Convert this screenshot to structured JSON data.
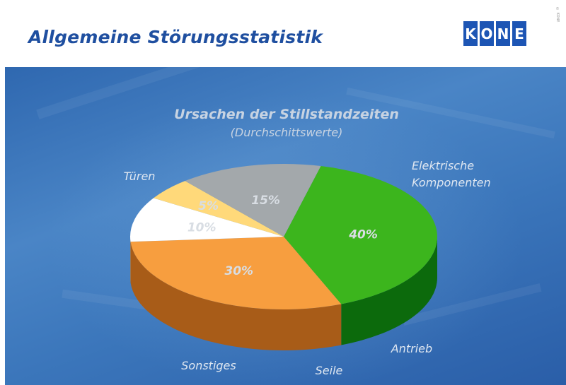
{
  "header": {
    "title": "Allgemeine Störungsstatistik",
    "logo_letters": [
      "K",
      "O",
      "N",
      "E"
    ],
    "copyright": "© KONE"
  },
  "chart_data": {
    "type": "pie",
    "title": "Ursachen der Stillstandzeiten",
    "subtitle": "(Durchschittswerte)",
    "slices": [
      {
        "label": "Türen",
        "value": 40,
        "value_label": "40%",
        "color": "#3cb51d",
        "side_color": "#0c6a0c"
      },
      {
        "label": "Elektrische Komponenten",
        "label_lines": [
          "Elektrische",
          "Komponenten"
        ],
        "value": 30,
        "value_label": "30%",
        "color": "#f79e3f",
        "side_color": "#a85c18"
      },
      {
        "label": "Antrieb",
        "value": 10,
        "value_label": "10%",
        "color": "#ffffff",
        "side_color": "#8b8b8b"
      },
      {
        "label": "Seile",
        "value": 5,
        "value_label": "5%",
        "color": "#ffd97a",
        "side_color": "#b08a2a"
      },
      {
        "label": "Sonstiges",
        "value": 15,
        "value_label": "15%",
        "color": "#a3a8ab",
        "side_color": "#545454"
      }
    ],
    "legend": "none",
    "style": "3d-pie"
  }
}
